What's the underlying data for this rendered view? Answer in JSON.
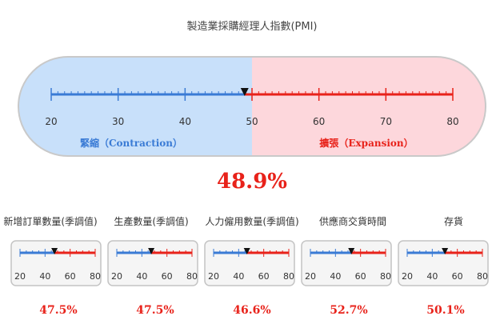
{
  "chart_data": [
    {
      "type": "gauge",
      "title": "製造業採購經理人指數(PMI)",
      "value": 48.9,
      "value_label": "48.9%",
      "range": [
        20,
        80
      ],
      "threshold": 50,
      "ticks": [
        20,
        30,
        40,
        50,
        60,
        70,
        80
      ],
      "tick_labels": [
        "20",
        "30",
        "40",
        "50",
        "60",
        "70",
        "80"
      ],
      "zones": [
        {
          "label": "緊縮（Contraction）",
          "from": 20,
          "to": 50,
          "color": "#3a7bd5"
        },
        {
          "label": "擴張（Expansion）",
          "from": 50,
          "to": 80,
          "color": "#e8221a"
        }
      ]
    },
    {
      "type": "gauge",
      "title": "新增訂單數量(季調值)",
      "value": 47.5,
      "value_label": "47.5%",
      "range": [
        20,
        80
      ],
      "threshold": 50,
      "ticks": [
        20,
        40,
        60,
        80
      ],
      "tick_labels": [
        "20",
        "40",
        "60",
        "80"
      ]
    },
    {
      "type": "gauge",
      "title": "生產數量(季調值)",
      "value": 47.5,
      "value_label": "47.5%",
      "range": [
        20,
        80
      ],
      "threshold": 50,
      "ticks": [
        20,
        40,
        60,
        80
      ],
      "tick_labels": [
        "20",
        "40",
        "60",
        "80"
      ]
    },
    {
      "type": "gauge",
      "title": "人力僱用數量(季調值)",
      "value": 46.6,
      "value_label": "46.6%",
      "range": [
        20,
        80
      ],
      "threshold": 50,
      "ticks": [
        20,
        40,
        60,
        80
      ],
      "tick_labels": [
        "20",
        "40",
        "60",
        "80"
      ]
    },
    {
      "type": "gauge",
      "title": "供應商交貨時間",
      "value": 52.7,
      "value_label": "52.7%",
      "range": [
        20,
        80
      ],
      "threshold": 50,
      "ticks": [
        20,
        40,
        60,
        80
      ],
      "tick_labels": [
        "20",
        "40",
        "60",
        "80"
      ]
    },
    {
      "type": "gauge",
      "title": "存貨",
      "value": 50.1,
      "value_label": "50.1%",
      "range": [
        20,
        80
      ],
      "threshold": 50,
      "ticks": [
        20,
        40,
        60,
        80
      ],
      "tick_labels": [
        "20",
        "40",
        "60",
        "80"
      ]
    }
  ],
  "colors": {
    "contraction": "#3a7bd5",
    "expansion": "#e8221a",
    "contraction_bg": "#c8e0fa",
    "expansion_bg": "#fdd7dc",
    "value_text": "#e8221a"
  }
}
